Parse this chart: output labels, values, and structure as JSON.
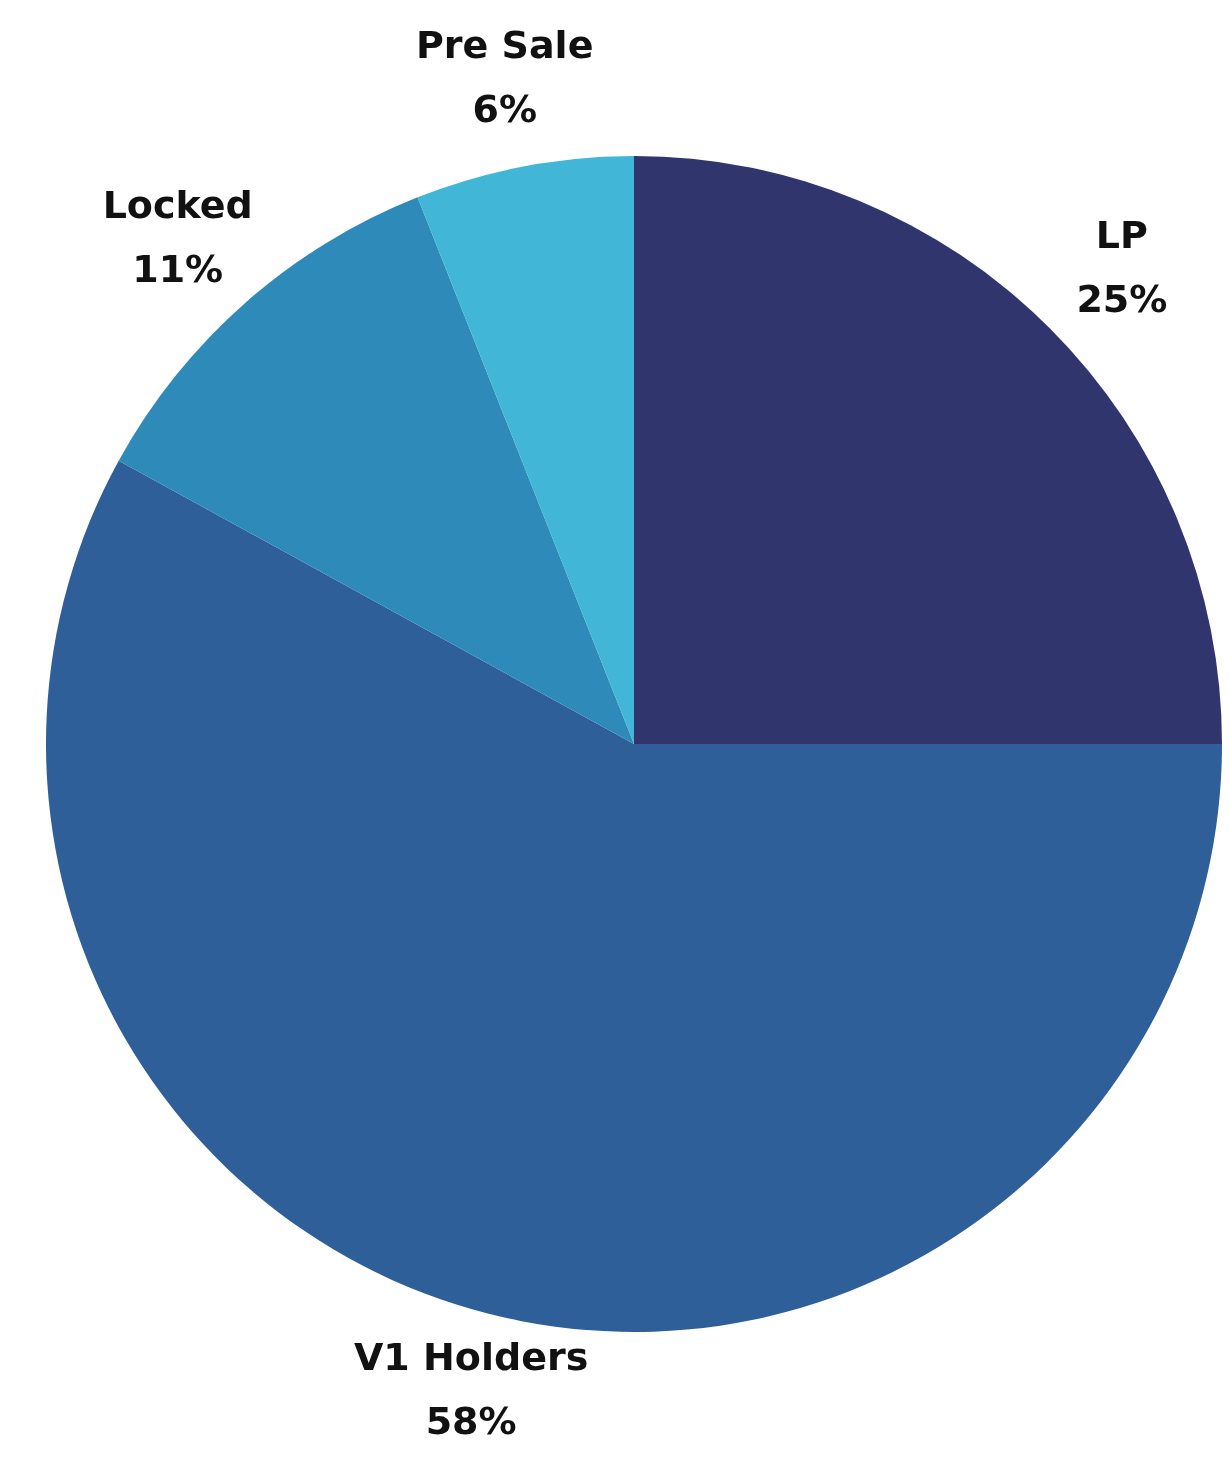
{
  "chart_data": {
    "type": "pie",
    "categories": [
      "LP",
      "V1 Holders",
      "Locked",
      "Pre Sale"
    ],
    "values": [
      25,
      58,
      11,
      6
    ],
    "colors": [
      "#31356e",
      "#2f5f98",
      "#2e8ab9",
      "#41b6d6"
    ],
    "value_labels": [
      "25%",
      "58%",
      "11%",
      "6%"
    ]
  }
}
